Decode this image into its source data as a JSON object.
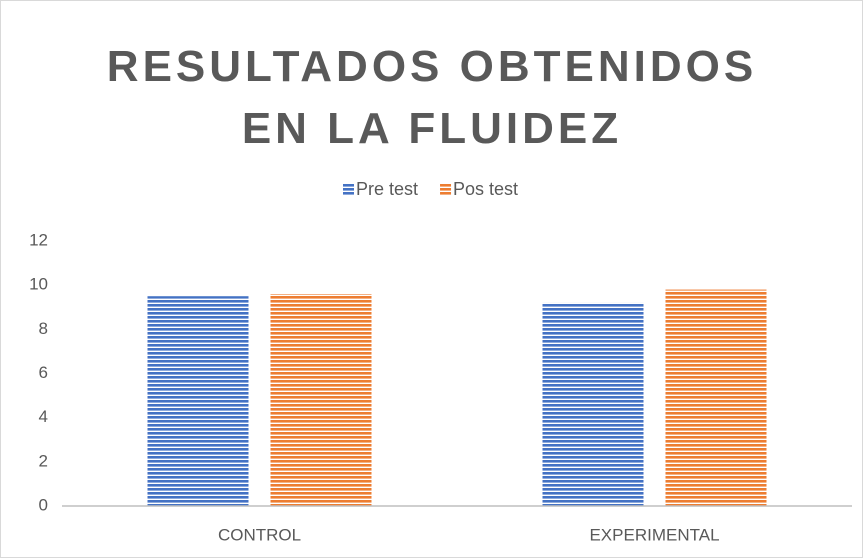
{
  "chart_data": {
    "type": "bar",
    "title": "RESULTADOS OBTENIDOS EN LA FLUIDEZ",
    "categories": [
      "CONTROL",
      "EXPERIMENTAL"
    ],
    "series": [
      {
        "name": "Pre test",
        "color": "#4472c4",
        "values": [
          9.5,
          9.2
        ]
      },
      {
        "name": "Pos test",
        "color": "#ed7d31",
        "values": [
          9.6,
          9.8
        ]
      }
    ],
    "ylim": [
      0,
      12
    ],
    "yticks": [
      0,
      2,
      4,
      6,
      8,
      10,
      12
    ],
    "grid": false,
    "legend": "top"
  }
}
